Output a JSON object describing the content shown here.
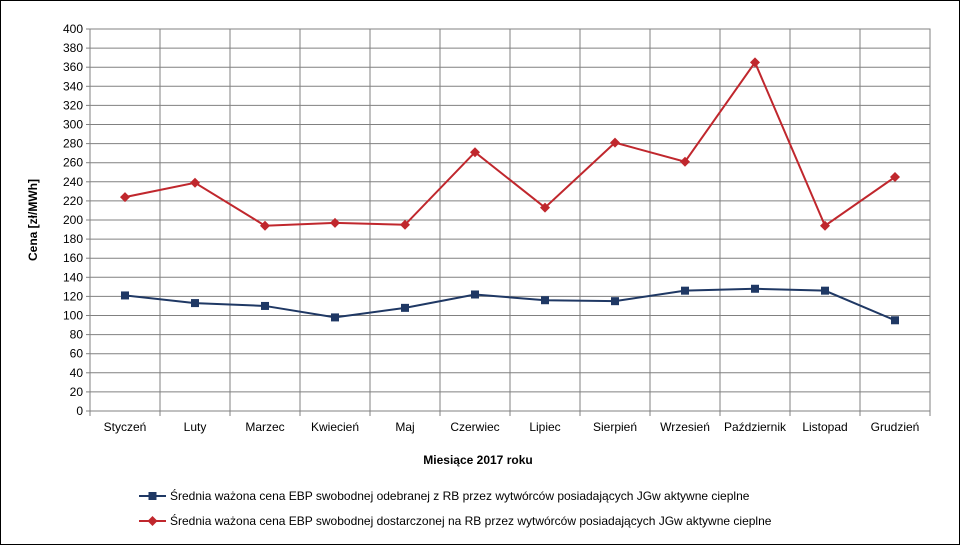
{
  "chart_data": {
    "type": "line",
    "title": "",
    "xlabel": "Miesiące 2017  roku",
    "ylabel": "Cena [zł/MWh]",
    "ylim": [
      0,
      400
    ],
    "ytick_step": 20,
    "grid": true,
    "legend_position": "bottom",
    "categories": [
      "Styczeń",
      "Luty",
      "Marzec",
      "Kwiecień",
      "Maj",
      "Czerwiec",
      "Lipiec",
      "Sierpień",
      "Wrzesień",
      "Październik",
      "Listopad",
      "Grudzień"
    ],
    "series": [
      {
        "name": "Średnia ważona cena EBP swobodnej odebranej z RB przez wytwórców posiadających JGw aktywne cieplne",
        "color": "#1f3864",
        "marker": "square",
        "values": [
          121,
          113,
          110,
          98,
          108,
          122,
          116,
          115,
          126,
          128,
          126,
          95
        ]
      },
      {
        "name": "Średnia ważona cena EBP swobodnej dostarczonej na RB przez wytwórców posiadających JGw aktywne cieplne",
        "color": "#c0272d",
        "marker": "diamond",
        "values": [
          224,
          239,
          194,
          197,
          195,
          271,
          213,
          281,
          261,
          365,
          194,
          245
        ]
      }
    ]
  }
}
